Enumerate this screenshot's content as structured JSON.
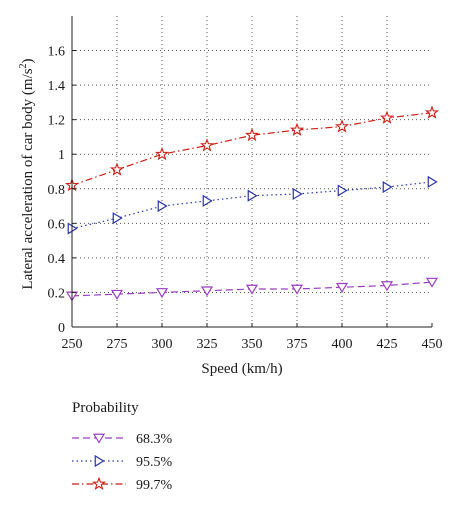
{
  "chart_data": {
    "type": "line",
    "xlabel": "Speed (km/h)",
    "ylabel_main": "Lateral acceleration of car body (m/s",
    "ylabel_sup": "2",
    "ylabel_close": ")",
    "xlim": [
      250,
      450
    ],
    "ylim": [
      0,
      1.8
    ],
    "grid": true,
    "x": [
      250,
      275,
      300,
      325,
      350,
      375,
      400,
      425,
      450
    ],
    "x_ticks": [
      "250",
      "275",
      "300",
      "325",
      "350",
      "375",
      "400",
      "425",
      "450"
    ],
    "y_ticks_values": [
      0,
      0.2,
      0.4,
      0.6,
      0.8,
      1.0,
      1.2,
      1.4,
      1.6
    ],
    "y_ticks": [
      "0",
      "0.2",
      "0.4",
      "0.6",
      "0.8",
      "1",
      "1.2",
      "1.4",
      "1.6"
    ],
    "legend": {
      "title": "Probability",
      "placement": "bottom-left"
    },
    "series": [
      {
        "name": "68.3%",
        "color": "#9a3ec0",
        "marker": "triangle-down",
        "line_style": "dash",
        "values": [
          0.18,
          0.19,
          0.2,
          0.21,
          0.22,
          0.22,
          0.23,
          0.24,
          0.26
        ]
      },
      {
        "name": "95.5%",
        "color": "#2a36a8",
        "marker": "triangle-right",
        "line_style": "dot",
        "values": [
          0.57,
          0.63,
          0.7,
          0.73,
          0.76,
          0.77,
          0.79,
          0.81,
          0.84
        ]
      },
      {
        "name": "99.7%",
        "color": "#cc1f14",
        "marker": "star",
        "line_style": "dashdot",
        "values": [
          0.82,
          0.91,
          1.0,
          1.05,
          1.11,
          1.14,
          1.16,
          1.21,
          1.24
        ]
      }
    ]
  }
}
